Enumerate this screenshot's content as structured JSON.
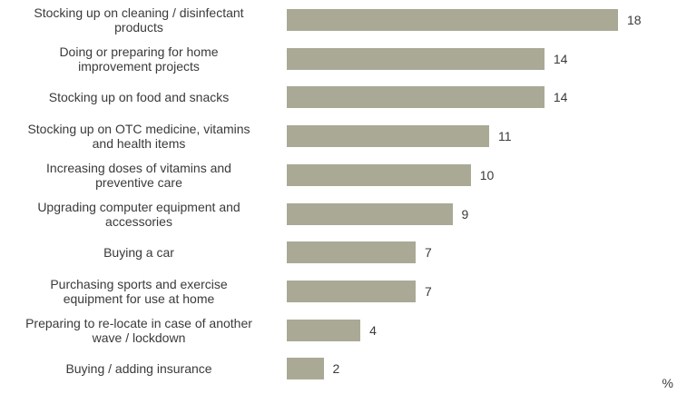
{
  "chart_data": {
    "type": "bar",
    "orientation": "horizontal",
    "categories": [
      "Stocking up on cleaning / disinfectant\nproducts",
      "Doing or preparing for home\nimprovement projects",
      "Stocking up on food and snacks",
      "Stocking up on OTC medicine, vitamins\nand health items",
      "Increasing doses of vitamins and\npreventive care",
      "Upgrading computer equipment and\naccessories",
      "Buying a car",
      "Purchasing sports and exercise\nequipment for use at home",
      "Preparing to re-locate in case of another\nwave / lockdown",
      "Buying / adding insurance"
    ],
    "values": [
      18,
      14,
      14,
      11,
      10,
      9,
      7,
      7,
      4,
      2
    ],
    "color": "#a9a996",
    "x_label": "%"
  }
}
